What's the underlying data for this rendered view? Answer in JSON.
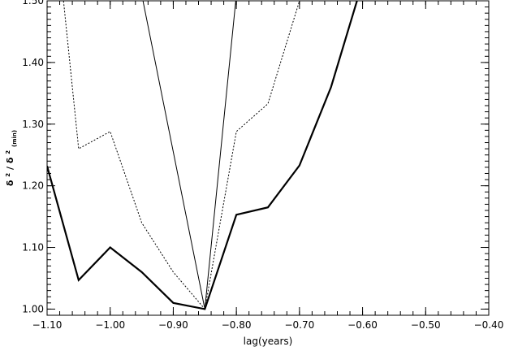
{
  "chart_data": {
    "type": "line",
    "title": "",
    "xlabel": "lag(years)",
    "ylabel": {
      "numerator": "δ",
      "numerator_sup": "2",
      "slash": "/",
      "denominator": "δ",
      "denominator_sup": "2",
      "denominator_sub": "(min)"
    },
    "xlim": [
      -1.1,
      -0.4
    ],
    "ylim": [
      0.99,
      1.5
    ],
    "grid": false,
    "legend": "none",
    "x_ticks": [
      {
        "value": -1.1,
        "label": "−1.10"
      },
      {
        "value": -1.0,
        "label": "−1.00"
      },
      {
        "value": -0.9,
        "label": "−0.90"
      },
      {
        "value": -0.8,
        "label": "−0.80"
      },
      {
        "value": -0.7,
        "label": "−0.70"
      },
      {
        "value": -0.6,
        "label": "−0.60"
      },
      {
        "value": -0.5,
        "label": "−0.50"
      },
      {
        "value": -0.4,
        "label": "−0.40"
      }
    ],
    "y_ticks": [
      {
        "value": 1.0,
        "label": "1.00"
      },
      {
        "value": 1.1,
        "label": "1.10"
      },
      {
        "value": 1.2,
        "label": "1.20"
      },
      {
        "value": 1.3,
        "label": "1.30"
      },
      {
        "value": 1.4,
        "label": "1.40"
      },
      {
        "value": 1.5,
        "label": "1.50"
      }
    ],
    "series": [
      {
        "style": "thick",
        "color": "#000000",
        "x": [
          -1.1,
          -1.05,
          -1.0,
          -0.95,
          -0.9,
          -0.85,
          -0.8,
          -0.75,
          -0.7,
          -0.65,
          -0.6
        ],
        "y": [
          1.232,
          1.047,
          1.1,
          1.06,
          1.01,
          1.0,
          1.153,
          1.165,
          1.233,
          1.36,
          1.53
        ]
      },
      {
        "style": "dotted",
        "color": "#000000",
        "x": [
          -1.075,
          -1.05,
          -1.0,
          -0.95,
          -0.9,
          -0.85,
          -0.8,
          -0.75,
          -0.7,
          -0.69
        ],
        "y": [
          1.51,
          1.26,
          1.288,
          1.14,
          1.06,
          1.0,
          1.288,
          1.333,
          1.5,
          1.53
        ]
      },
      {
        "style": "thin",
        "color": "#000000",
        "x": [
          -0.95,
          -0.85,
          -0.8
        ],
        "y": [
          1.51,
          1.0,
          1.51
        ]
      }
    ]
  }
}
